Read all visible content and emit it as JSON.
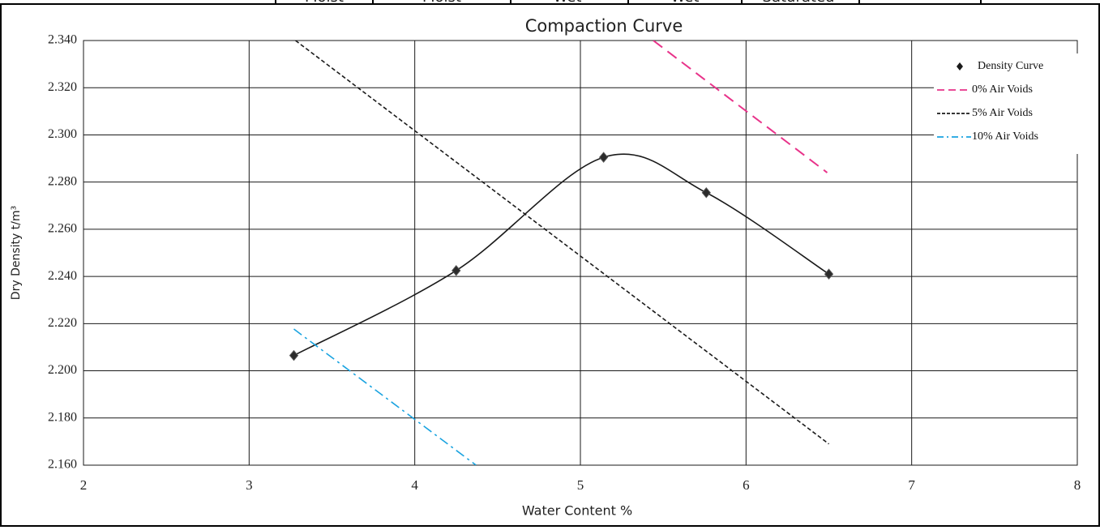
{
  "table_cells": [
    "Moist",
    "Moist",
    "Wet",
    "Wet",
    "Saturated"
  ],
  "chart_data": {
    "type": "line",
    "title": "Compaction Curve",
    "x_label": "Water Content %",
    "y_label": "Dry Density t/m³",
    "xlim": [
      2,
      8
    ],
    "xticks": [
      2,
      3,
      4,
      5,
      6,
      7,
      8
    ],
    "ylim": [
      2.16,
      2.34
    ],
    "yticks": [
      {
        "value": 2.16,
        "label": "2.160"
      },
      {
        "value": 2.18,
        "label": "2.180"
      },
      {
        "value": 2.2,
        "label": "2.200"
      },
      {
        "value": 2.22,
        "label": "2.220"
      },
      {
        "value": 2.24,
        "label": "2.240"
      },
      {
        "value": 2.26,
        "label": "2.260"
      },
      {
        "value": 2.28,
        "label": "2.280"
      },
      {
        "value": 2.3,
        "label": "2.300"
      },
      {
        "value": 2.32,
        "label": "2.320"
      },
      {
        "value": 2.34,
        "label": "2.340"
      }
    ],
    "grid": true,
    "legend": "upper right",
    "series": [
      {
        "name": "Density Curve",
        "color": "#1a1a1a",
        "style": "smooth-markers",
        "x": [
          3.27,
          4.25,
          5.14,
          5.76,
          6.5
        ],
        "values": [
          2.2065,
          2.2425,
          2.2905,
          2.2755,
          2.241
        ]
      },
      {
        "name": "0% Air Voids",
        "color": "#e8338a",
        "style": "dash",
        "x": [
          5.44,
          6.49
        ],
        "values": [
          2.34,
          2.284
        ]
      },
      {
        "name": "5% Air Voids",
        "color": "#1a1a1a",
        "style": "short-dash",
        "x": [
          3.28,
          6.5
        ],
        "values": [
          2.34,
          2.169
        ]
      },
      {
        "name": "10% Air Voids",
        "color": "#1aa3e0",
        "style": "dash-dot",
        "x": [
          3.27,
          4.37
        ],
        "values": [
          2.2177,
          2.16
        ]
      }
    ]
  }
}
